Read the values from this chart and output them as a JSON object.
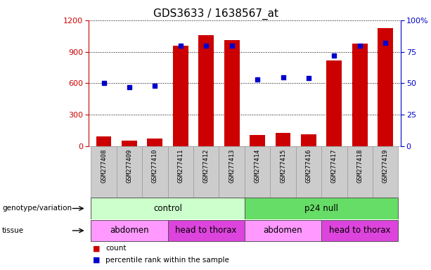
{
  "title": "GDS3633 / 1638567_at",
  "samples": [
    "GSM277408",
    "GSM277409",
    "GSM277410",
    "GSM277411",
    "GSM277412",
    "GSM277413",
    "GSM277414",
    "GSM277415",
    "GSM277416",
    "GSM277417",
    "GSM277418",
    "GSM277419"
  ],
  "counts": [
    90,
    55,
    70,
    960,
    1060,
    1010,
    105,
    125,
    110,
    820,
    980,
    1130
  ],
  "percentile_ranks": [
    50,
    47,
    48,
    80,
    80,
    80,
    53,
    55,
    54,
    72,
    80,
    82
  ],
  "ylim_left": [
    0,
    1200
  ],
  "ylim_right": [
    0,
    100
  ],
  "yticks_left": [
    0,
    300,
    600,
    900,
    1200
  ],
  "yticks_right": [
    0,
    25,
    50,
    75,
    100
  ],
  "ytick_labels_right": [
    "0",
    "25",
    "50",
    "75",
    "100%"
  ],
  "bar_color": "#cc0000",
  "dot_color": "#0000cc",
  "genotype_groups": [
    {
      "label": "control",
      "start": 0,
      "end": 6,
      "color": "#ccffcc"
    },
    {
      "label": "p24 null",
      "start": 6,
      "end": 12,
      "color": "#66dd66"
    }
  ],
  "tissue_groups": [
    {
      "label": "abdomen",
      "start": 0,
      "end": 3,
      "color": "#ff99ff"
    },
    {
      "label": "head to thorax",
      "start": 3,
      "end": 6,
      "color": "#dd44dd"
    },
    {
      "label": "abdomen",
      "start": 6,
      "end": 9,
      "color": "#ff99ff"
    },
    {
      "label": "head to thorax",
      "start": 9,
      "end": 12,
      "color": "#dd44dd"
    }
  ],
  "tick_bg_color": "#cccccc",
  "tick_edge_color": "#999999",
  "title_fontsize": 11,
  "legend_count_color": "#cc0000",
  "legend_pct_color": "#0000cc"
}
